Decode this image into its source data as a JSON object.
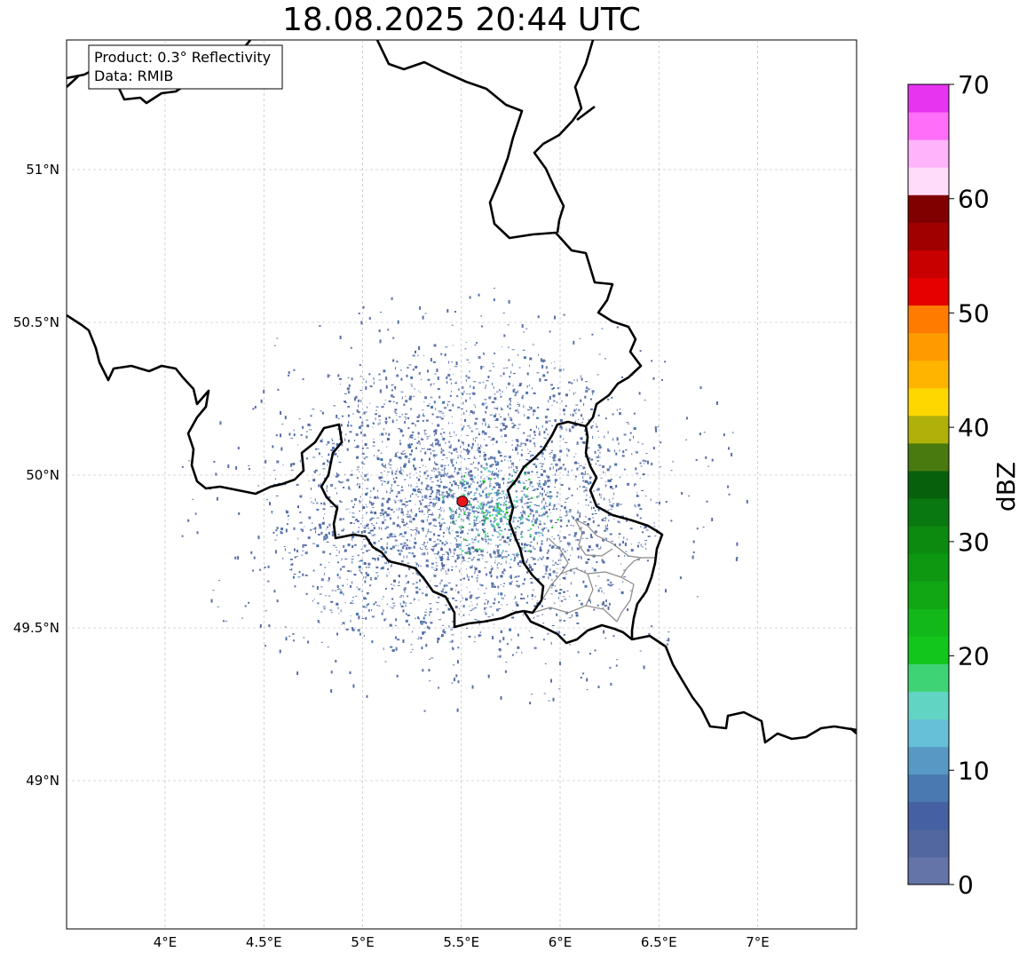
{
  "title": "18.08.2025 20:44 UTC",
  "info_box": {
    "product": "Product: 0.3° Reflectivity",
    "data": "Data: RMIB"
  },
  "map": {
    "lon_range": [
      3.5,
      7.5
    ],
    "lat_range": [
      48.55,
      51.4
    ],
    "lon_ticks": [
      4,
      4.5,
      5,
      5.5,
      6,
      6.5,
      7
    ],
    "lon_tick_labels": [
      "4°E",
      "4.5°E",
      "5°E",
      "5.5°E",
      "6°E",
      "6.5°E",
      "7°E"
    ],
    "lat_ticks": [
      51,
      50.5,
      50,
      49.5,
      49
    ],
    "lat_tick_labels": [
      "51°N",
      "50.5°N",
      "50°N",
      "49.5°N",
      "49°N"
    ],
    "gridlines": true,
    "radar_site": {
      "lon": 5.505,
      "lat": 49.914,
      "color": "#e8141c"
    }
  },
  "colorbar": {
    "label": "dBZ",
    "vmin": 0,
    "vmax": 70,
    "ticks": [
      0,
      10,
      20,
      30,
      40,
      50,
      60,
      70
    ],
    "tick_labels": [
      "0",
      "10",
      "20",
      "30",
      "40",
      "50",
      "60",
      "70"
    ],
    "colors": [
      "#6574a8",
      "#5266a0",
      "#4660a4",
      "#4a78b0",
      "#5898c4",
      "#66c0d8",
      "#62d4c4",
      "#3ed476",
      "#12c61c",
      "#12b81a",
      "#10a614",
      "#0e9812",
      "#0c8a10",
      "#0a7810",
      "#06600c",
      "#487a10",
      "#b0b00a",
      "#ffd700",
      "#ffb400",
      "#ff9a00",
      "#ff7c00",
      "#e60000",
      "#c80000",
      "#a00000",
      "#800000",
      "#ffdcfa",
      "#ffb4fa",
      "#ff6ef8",
      "#e634f0"
    ]
  }
}
